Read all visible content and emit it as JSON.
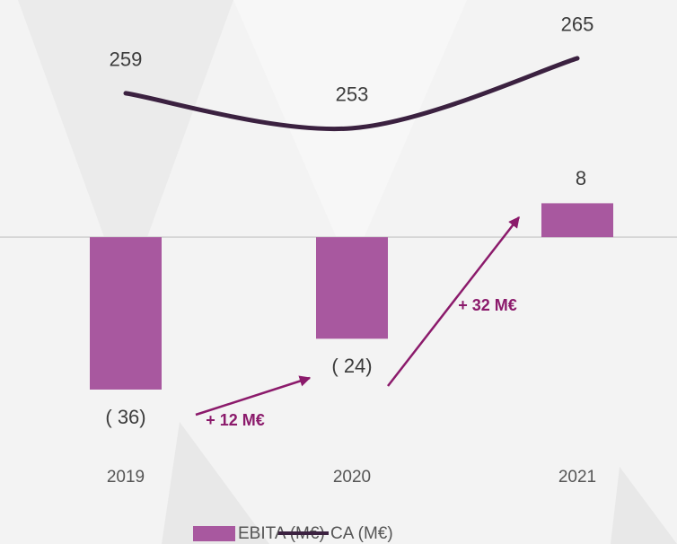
{
  "chart_data": {
    "type": "bar",
    "categories": [
      "2019",
      "2020",
      "2021"
    ],
    "series": [
      {
        "name": "EBITA (M€)",
        "type": "bar",
        "color": "#a8589f",
        "values": [
          -36,
          -24,
          8
        ],
        "value_labels": [
          "( 36)",
          "( 24)",
          "8"
        ]
      },
      {
        "name": "CA (M€)",
        "type": "line",
        "axis": "y2",
        "color": "#3b2140",
        "values": [
          259,
          253,
          265
        ]
      }
    ],
    "ylim": [
      -50,
      56
    ],
    "y2lim": [
      198,
      275
    ],
    "annotations": [
      "+ 12 M€",
      "+ 32 M€"
    ]
  }
}
